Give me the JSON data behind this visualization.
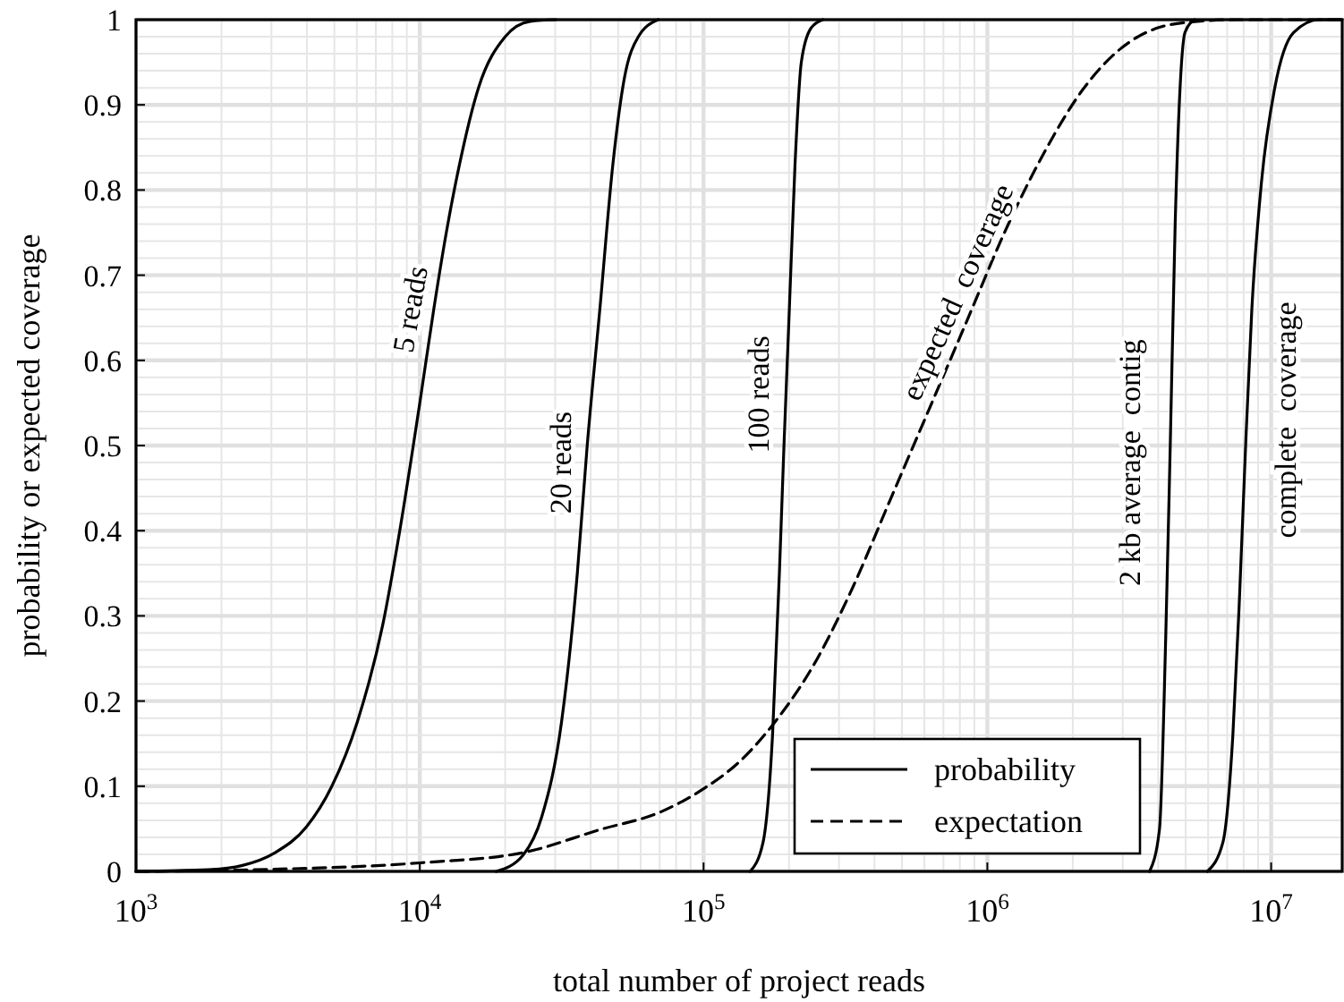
{
  "chart_data": {
    "type": "line",
    "xlabel": "total number of project reads",
    "ylabel": "probability or expected coverage",
    "log": "x",
    "xlim": [
      1000,
      17800000
    ],
    "xticks": [
      {
        "value": 1000,
        "label": "10$^{3}$"
      },
      {
        "value": 10000,
        "label": "10$^{4}$"
      },
      {
        "value": 100000,
        "label": "10$^{5}$"
      },
      {
        "value": 1000000,
        "label": "10$^{6}$"
      },
      {
        "value": 10000000,
        "label": "10$^{7}$"
      }
    ],
    "ylim": [
      0,
      1
    ],
    "yticks": [
      0,
      0.1,
      0.2,
      0.3,
      0.4,
      0.5,
      0.6,
      0.7,
      0.8,
      0.9,
      1
    ],
    "grid": true,
    "annotations": [
      "probability",
      "expectation"
    ],
    "series": [
      {
        "name": "5 reads",
        "color": "#000000",
        "line_style": "solid",
        "x": [
          1000,
          1800,
          2370,
          3090,
          3980,
          4900,
          6030,
          7410,
          8500,
          10000,
          11200,
          12400,
          13800,
          16100,
          20000,
          24500,
          30200
        ],
        "values": [
          0,
          0.002,
          0.007,
          0.022,
          0.052,
          0.1,
          0.176,
          0.29,
          0.4,
          0.55,
          0.66,
          0.75,
          0.83,
          0.92,
          0.98,
          0.998,
          1
        ]
      },
      {
        "name": "20 reads",
        "color": "#000000",
        "line_style": "solid",
        "x": [
          18600,
          23100,
          26900,
          31600,
          35900,
          38900,
          43100,
          47900,
          52500,
          58900,
          69200
        ],
        "values": [
          0,
          0.019,
          0.064,
          0.176,
          0.35,
          0.5,
          0.66,
          0.83,
          0.93,
          0.98,
          1
        ]
      },
      {
        "name": "100 reads",
        "color": "#000000",
        "line_style": "solid",
        "x": [
          146000,
          162000,
          175000,
          185000,
          192000,
          200000,
          210000,
          221000,
          239000,
          263000
        ],
        "values": [
          0,
          0.034,
          0.16,
          0.35,
          0.5,
          0.65,
          0.83,
          0.95,
          0.99,
          1
        ]
      },
      {
        "name": "expected  coverage",
        "color": "#000000",
        "line_style": "dashed",
        "x": [
          1000,
          2630,
          10000,
          23100,
          43100,
          70800,
          100000,
          132000,
          179000,
          245000,
          335000,
          457000,
          624000,
          851000,
          1160000,
          1580000,
          2170000,
          2950000,
          4040000,
          5500000,
          7520000,
          17800000
        ],
        "values": [
          0,
          0.002,
          0.01,
          0.022,
          0.049,
          0.07,
          0.097,
          0.127,
          0.176,
          0.243,
          0.333,
          0.438,
          0.543,
          0.648,
          0.753,
          0.843,
          0.918,
          0.966,
          0.991,
          0.998,
          1,
          1
        ]
      },
      {
        "name": "2 kb average  contig",
        "color": "#000000",
        "line_style": "solid",
        "x": [
          3730000,
          4040000,
          4250000,
          4410000,
          4590000,
          4760000,
          4970000,
          5370000
        ],
        "values": [
          0,
          0.049,
          0.273,
          0.5,
          0.76,
          0.91,
          0.985,
          1
        ]
      },
      {
        "name": "complete  coverage",
        "color": "#000000",
        "line_style": "solid",
        "x": [
          5960000,
          6760000,
          7330000,
          7710000,
          8130000,
          8550000,
          9250000,
          10300000,
          12000000,
          14800000,
          17800000
        ],
        "values": [
          0,
          0.034,
          0.16,
          0.31,
          0.5,
          0.66,
          0.81,
          0.92,
          0.985,
          1,
          1
        ]
      }
    ]
  }
}
